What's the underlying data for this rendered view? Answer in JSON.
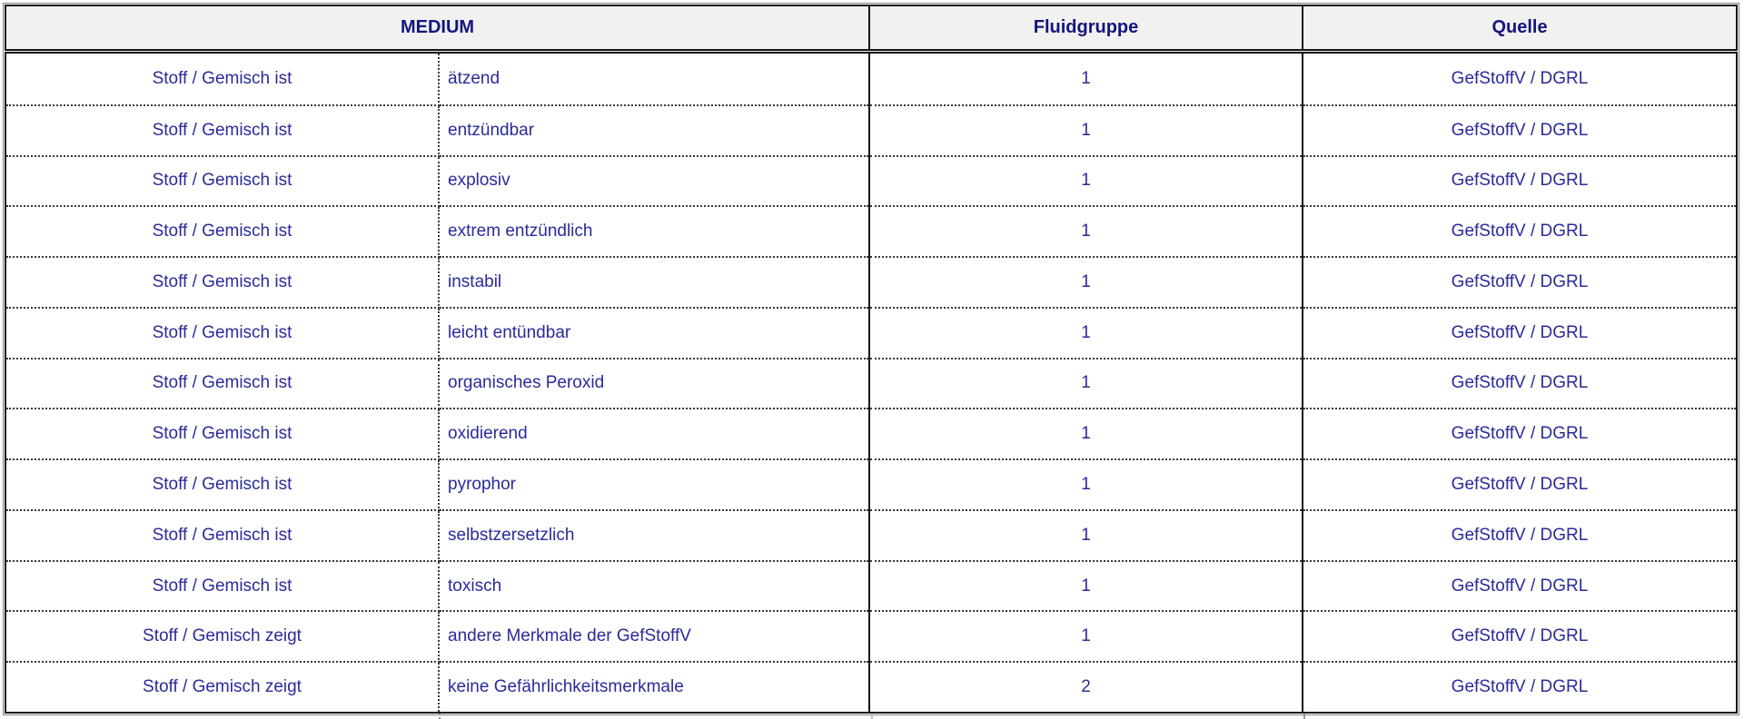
{
  "table": {
    "header": {
      "medium": "MEDIUM",
      "fluidgruppe": "Fluidgruppe",
      "quelle": "Quelle"
    },
    "rows": [
      {
        "subject": "Stoff / Gemisch ist",
        "property": "ätzend",
        "fluidgruppe": "1",
        "quelle": "GefStoffV / DGRL"
      },
      {
        "subject": "Stoff / Gemisch ist",
        "property": "entzündbar",
        "fluidgruppe": "1",
        "quelle": "GefStoffV / DGRL"
      },
      {
        "subject": "Stoff / Gemisch ist",
        "property": "explosiv",
        "fluidgruppe": "1",
        "quelle": "GefStoffV / DGRL"
      },
      {
        "subject": "Stoff / Gemisch ist",
        "property": "extrem entzündlich",
        "fluidgruppe": "1",
        "quelle": "GefStoffV / DGRL"
      },
      {
        "subject": "Stoff / Gemisch ist",
        "property": "instabil",
        "fluidgruppe": "1",
        "quelle": "GefStoffV / DGRL"
      },
      {
        "subject": "Stoff / Gemisch ist",
        "property": "leicht entündbar",
        "fluidgruppe": "1",
        "quelle": "GefStoffV / DGRL"
      },
      {
        "subject": "Stoff / Gemisch ist",
        "property": "organisches Peroxid",
        "fluidgruppe": "1",
        "quelle": "GefStoffV / DGRL"
      },
      {
        "subject": "Stoff / Gemisch ist",
        "property": "oxidierend",
        "fluidgruppe": "1",
        "quelle": "GefStoffV / DGRL"
      },
      {
        "subject": "Stoff / Gemisch ist",
        "property": "pyrophor",
        "fluidgruppe": "1",
        "quelle": "GefStoffV / DGRL"
      },
      {
        "subject": "Stoff / Gemisch ist",
        "property": "selbstzersetzlich",
        "fluidgruppe": "1",
        "quelle": "GefStoffV / DGRL"
      },
      {
        "subject": "Stoff / Gemisch ist",
        "property": "toxisch",
        "fluidgruppe": "1",
        "quelle": "GefStoffV / DGRL"
      },
      {
        "subject": "Stoff / Gemisch zeigt",
        "property": "andere Merkmale der GefStoffV",
        "fluidgruppe": "1",
        "quelle": "GefStoffV / DGRL"
      },
      {
        "subject": "Stoff / Gemisch zeigt",
        "property": "keine Gefährlichkeitsmerkmale",
        "fluidgruppe": "2",
        "quelle": "GefStoffV / DGRL"
      }
    ]
  },
  "colors": {
    "header_bg": "#f1f1f1",
    "header_text": "#15157d",
    "body_text": "#2a2a9b",
    "border": "#141414"
  }
}
